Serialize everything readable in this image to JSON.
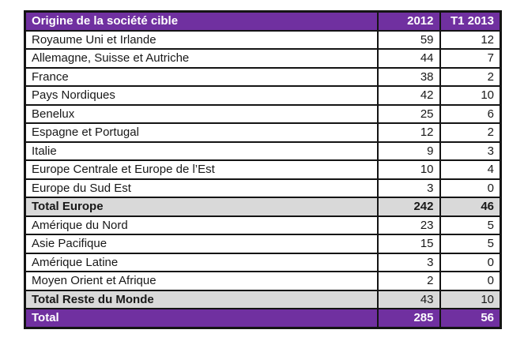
{
  "colors": {
    "header_bg": "#7030A0",
    "total_bg": "#7030A0",
    "subtotal_bg": "#D9D9D9",
    "border": "#141414",
    "header_text": "#FFFFFF",
    "body_text": "#181818"
  },
  "table": {
    "header": {
      "label": "Origine de la société cible",
      "col_2012": "2012",
      "col_t1_2013": "T1 2013"
    },
    "rows": [
      {
        "label": "Royaume Uni et Irlande",
        "v2012": "59",
        "t1_2013": "12",
        "style": "normal",
        "values_bold": false
      },
      {
        "label": "Allemagne, Suisse et Autriche",
        "v2012": "44",
        "t1_2013": "7",
        "style": "normal",
        "values_bold": false
      },
      {
        "label": "France",
        "v2012": "38",
        "t1_2013": "2",
        "style": "normal",
        "values_bold": false
      },
      {
        "label": "Pays Nordiques",
        "v2012": "42",
        "t1_2013": "10",
        "style": "normal",
        "values_bold": false
      },
      {
        "label": "Benelux",
        "v2012": "25",
        "t1_2013": "6",
        "style": "normal",
        "values_bold": false
      },
      {
        "label": "Espagne et Portugal",
        "v2012": "12",
        "t1_2013": "2",
        "style": "normal",
        "values_bold": false
      },
      {
        "label": "Italie",
        "v2012": "9",
        "t1_2013": "3",
        "style": "normal",
        "values_bold": false
      },
      {
        "label": "Europe Centrale et Europe de l’Est",
        "v2012": "10",
        "t1_2013": "4",
        "style": "normal",
        "values_bold": false
      },
      {
        "label": "Europe du Sud Est",
        "v2012": "3",
        "t1_2013": "0",
        "style": "normal",
        "values_bold": false
      },
      {
        "label": "Total Europe",
        "v2012": "242",
        "t1_2013": "46",
        "style": "subtotal",
        "values_bold": true
      },
      {
        "label": "Amérique du Nord",
        "v2012": "23",
        "t1_2013": "5",
        "style": "normal",
        "values_bold": false
      },
      {
        "label": "Asie Pacifique",
        "v2012": "15",
        "t1_2013": "5",
        "style": "normal",
        "values_bold": false
      },
      {
        "label": "Amérique Latine",
        "v2012": "3",
        "t1_2013": "0",
        "style": "normal",
        "values_bold": false
      },
      {
        "label": "Moyen Orient et Afrique",
        "v2012": "2",
        "t1_2013": "0",
        "style": "normal",
        "values_bold": false
      },
      {
        "label": "Total Reste du Monde",
        "v2012": "43",
        "t1_2013": "10",
        "style": "subtotal",
        "values_bold": false
      },
      {
        "label": "Total",
        "v2012": "285",
        "t1_2013": "56",
        "style": "total",
        "values_bold": true
      }
    ]
  }
}
